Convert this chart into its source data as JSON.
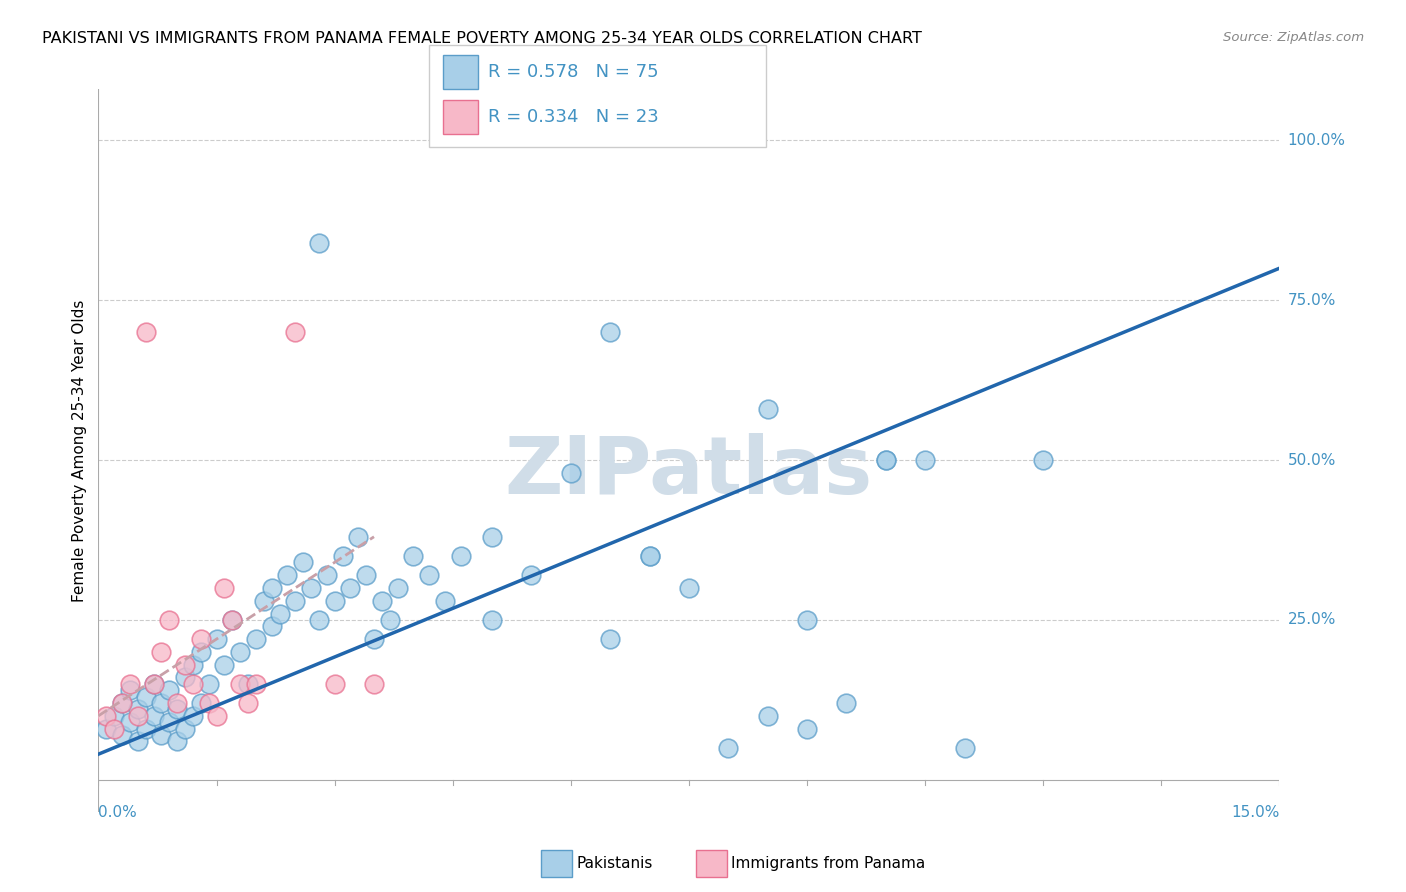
{
  "title": "PAKISTANI VS IMMIGRANTS FROM PANAMA FEMALE POVERTY AMONG 25-34 YEAR OLDS CORRELATION CHART",
  "source": "Source: ZipAtlas.com",
  "ylabel": "Female Poverty Among 25-34 Year Olds",
  "xmin": 0.0,
  "xmax": 0.15,
  "ymin": -0.05,
  "ymax": 1.08,
  "blue_color": "#a8cfe8",
  "blue_edge_color": "#5b9dc9",
  "pink_color": "#f7b8c8",
  "pink_edge_color": "#e87090",
  "blue_line_color": "#2166ac",
  "pink_line_color": "#d4a0a8",
  "text_blue": "#4393c3",
  "grid_color": "#cccccc",
  "axis_color": "#aaaaaa",
  "watermark_color": "#d0dde8",
  "pakistani_x": [
    0.001,
    0.002,
    0.003,
    0.003,
    0.004,
    0.004,
    0.005,
    0.005,
    0.006,
    0.006,
    0.007,
    0.007,
    0.008,
    0.008,
    0.009,
    0.009,
    0.01,
    0.01,
    0.011,
    0.011,
    0.012,
    0.012,
    0.013,
    0.013,
    0.014,
    0.015,
    0.016,
    0.017,
    0.018,
    0.019,
    0.02,
    0.021,
    0.022,
    0.022,
    0.023,
    0.024,
    0.025,
    0.026,
    0.027,
    0.028,
    0.029,
    0.03,
    0.031,
    0.032,
    0.033,
    0.034,
    0.035,
    0.036,
    0.037,
    0.038,
    0.04,
    0.042,
    0.044,
    0.046,
    0.05,
    0.055,
    0.06,
    0.065,
    0.07,
    0.075,
    0.08,
    0.085,
    0.09,
    0.095,
    0.1,
    0.105,
    0.11,
    0.028,
    0.065,
    0.085,
    0.1,
    0.12,
    0.05,
    0.07,
    0.09
  ],
  "pakistani_y": [
    0.08,
    0.1,
    0.07,
    0.12,
    0.09,
    0.14,
    0.06,
    0.11,
    0.08,
    0.13,
    0.1,
    0.15,
    0.07,
    0.12,
    0.09,
    0.14,
    0.06,
    0.11,
    0.08,
    0.16,
    0.1,
    0.18,
    0.12,
    0.2,
    0.15,
    0.22,
    0.18,
    0.25,
    0.2,
    0.15,
    0.22,
    0.28,
    0.24,
    0.3,
    0.26,
    0.32,
    0.28,
    0.34,
    0.3,
    0.25,
    0.32,
    0.28,
    0.35,
    0.3,
    0.38,
    0.32,
    0.22,
    0.28,
    0.25,
    0.3,
    0.35,
    0.32,
    0.28,
    0.35,
    0.38,
    0.32,
    0.48,
    0.22,
    0.35,
    0.3,
    0.05,
    0.1,
    0.08,
    0.12,
    0.5,
    0.5,
    0.05,
    0.84,
    0.7,
    0.58,
    0.5,
    0.5,
    0.25,
    0.35,
    0.25
  ],
  "panama_x": [
    0.001,
    0.002,
    0.003,
    0.004,
    0.005,
    0.006,
    0.007,
    0.008,
    0.009,
    0.01,
    0.011,
    0.012,
    0.013,
    0.014,
    0.015,
    0.016,
    0.017,
    0.018,
    0.019,
    0.02,
    0.025,
    0.03,
    0.035
  ],
  "panama_y": [
    0.1,
    0.08,
    0.12,
    0.15,
    0.1,
    0.7,
    0.15,
    0.2,
    0.25,
    0.12,
    0.18,
    0.15,
    0.22,
    0.12,
    0.1,
    0.3,
    0.25,
    0.15,
    0.12,
    0.15,
    0.7,
    0.15,
    0.15
  ],
  "blue_line_x": [
    0.0,
    0.15
  ],
  "blue_line_y": [
    0.04,
    0.8
  ],
  "pink_line_x": [
    0.0,
    0.035
  ],
  "pink_line_y": [
    0.1,
    0.38
  ]
}
